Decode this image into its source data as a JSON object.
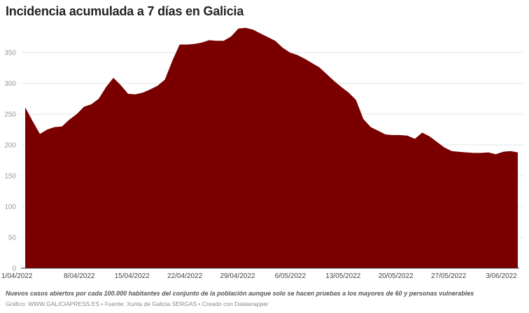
{
  "header": {
    "title": "Incidencia acumulada a 7 días en Galicia"
  },
  "footer": {
    "note": "Nuevos casos abiertos por cada 100.000 habitantes del conjunto de la población aunque solo se hacen pruebas a los mayores de 60 y personas vulnerables",
    "credit": "Gráfico: WWW.GALICIAPRESS.ES • Fuente: Xunta de Galicia SERGAS • Creado con Datawrapper"
  },
  "colors": {
    "area": "#7a0000",
    "grid": "#e6e6e6",
    "axis": "#333333"
  },
  "chart_data": {
    "type": "area",
    "title": "Incidencia acumulada a 7 días en Galicia",
    "xlabel": "",
    "ylabel": "",
    "ylim": [
      0,
      390
    ],
    "yticks": [
      0,
      50,
      100,
      150,
      200,
      250,
      300,
      350
    ],
    "xtick_labels": [
      "1/04/2022",
      "8/04/2022",
      "15/04/2022",
      "22/04/2022",
      "29/04/2022",
      "6/05/2022",
      "13/05/2022",
      "20/05/2022",
      "27/05/2022",
      "3/06/2022"
    ],
    "x_start": "1/04/2022",
    "x_end": "5/06/2022",
    "values": [
      261,
      239,
      218,
      225,
      229,
      230,
      241,
      250,
      262,
      266,
      275,
      294,
      309,
      297,
      283,
      282,
      285,
      290,
      296,
      306,
      336,
      363,
      363,
      364,
      366,
      370,
      369,
      369,
      376,
      389,
      390,
      387,
      381,
      375,
      369,
      358,
      350,
      346,
      340,
      333,
      326,
      315,
      304,
      294,
      285,
      273,
      242,
      229,
      223,
      217,
      216,
      216,
      215,
      210,
      220,
      214,
      205,
      196,
      190,
      189,
      188,
      187,
      187,
      188,
      185,
      189,
      190,
      188
    ],
    "grid": true,
    "legend": "none"
  }
}
